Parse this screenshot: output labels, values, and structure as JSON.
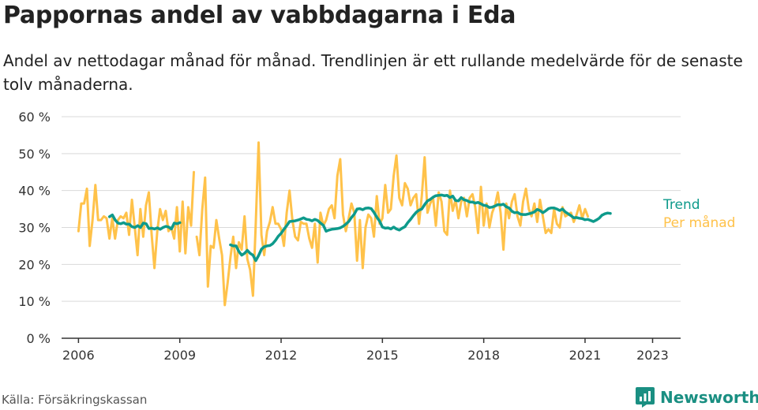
{
  "title": "Pappornas andel av vabbdagarna i Eda",
  "subtitle": "Andel av nettodagar månad för månad. Trendlinjen är ett rullande medelvärde för de senaste tolv månaderna.",
  "source": "Källa: Försäkringskassan",
  "brand": "Newsworthy",
  "colors": {
    "monthly": "#ffc24a",
    "trend": "#0e9a8b",
    "grid": "#d9d9d9",
    "axis": "#333333",
    "brand": "#1a8f82"
  },
  "chart_data": {
    "type": "line",
    "title": "Pappornas andel av vabbdagarna i Eda",
    "xlabel": "",
    "ylabel": "",
    "ylim": [
      0,
      60
    ],
    "xlim": [
      2005.5,
      2023.83
    ],
    "y_ticks": [
      0,
      10,
      20,
      30,
      40,
      50,
      60
    ],
    "y_tick_labels": [
      "0 %",
      "10 %",
      "20 %",
      "30 %",
      "40 %",
      "50 %",
      "60 %"
    ],
    "x_ticks": [
      2006,
      2009,
      2012,
      2015,
      2018,
      2021,
      2023
    ],
    "x_tick_labels": [
      "2006",
      "2009",
      "2012",
      "2015",
      "2018",
      "2021",
      "2023"
    ],
    "grid": true,
    "legend": "right, as line-end labels",
    "series": [
      {
        "name": "Per månad",
        "color": "#ffc24a",
        "segments": [
          {
            "start_year": 2006.0,
            "values": [
              29,
              36.5,
              36.5,
              40.5,
              25,
              32,
              41.5,
              32,
              32,
              33,
              32.5,
              27,
              32.5,
              27,
              32,
              33,
              32.5,
              34,
              28,
              37.5,
              30,
              22.5,
              35,
              27.5,
              36,
              39.5,
              28,
              19,
              29,
              35,
              32,
              34.5,
              29,
              30,
              27,
              35.5,
              23.5,
              37,
              23,
              35.5,
              30.5,
              45
            ]
          },
          {
            "start_year": 2009.5,
            "values": [
              27.5,
              22.5,
              35,
              43.5,
              14,
              25,
              24.5,
              32,
              27,
              22.5,
              9,
              15,
              22,
              27.5,
              19,
              26,
              24,
              33,
              21.5,
              18.5,
              11.5,
              31,
              53,
              28,
              22.5,
              29,
              31.5,
              35.5,
              31,
              31,
              29.5,
              25,
              34,
              40,
              32,
              27.5,
              26.5,
              31.5,
              31,
              31,
              27,
              24.5,
              31,
              20.5,
              34,
              30.5,
              32,
              35,
              36,
              32.5,
              44,
              48.5,
              33.5,
              29,
              32.5,
              36.5,
              34,
              21,
              32,
              19,
              30,
              33.5,
              32.5,
              27.5,
              38.5,
              31,
              32.5,
              41.5,
              34,
              35,
              44,
              49.5,
              38,
              36,
              42,
              40.5,
              36,
              38,
              39,
              31,
              38.5,
              49,
              34,
              36.5,
              38,
              30.5,
              39.5,
              37,
              29,
              28,
              40,
              34.5,
              37.5,
              32.5,
              37,
              38,
              33,
              38,
              39,
              35.5,
              28.5,
              41,
              30.5,
              36.5,
              30,
              34,
              36,
              39.5,
              34,
              24,
              36.5,
              32.5,
              37,
              39,
              33,
              30.5,
              37,
              40.5,
              35,
              33,
              36.5,
              31.5,
              37.5,
              33,
              28.5,
              29.5,
              28.5,
              35,
              31,
              30,
              35.5,
              33,
              33.5,
              34,
              31.5,
              33.5,
              36,
              32.5,
              35,
              33
            ]
          }
        ]
      },
      {
        "name": "Trend",
        "color": "#0e9a8b",
        "segments": [
          {
            "start_year": 2006.92,
            "values": [
              32.9,
              33.4,
              32,
              31.2,
              31,
              31.3,
              30.9,
              30.9,
              30.2,
              30,
              30.5,
              30,
              31.2,
              31,
              29.7,
              29.8,
              29.6,
              29.9,
              29.5,
              30,
              30.3,
              30.1,
              29.6,
              31.2,
              31,
              31.3
            ]
          },
          {
            "start_year": 2010.5,
            "values": [
              25.3,
              25,
              25,
              23.5,
              22.5,
              23,
              23.8,
              23,
              22.5,
              21,
              22.4,
              24.1,
              24.8,
              25,
              25.1,
              25.6,
              26.5,
              27.6,
              28.4,
              29.5,
              30.5,
              31.6,
              31.7,
              31.8,
              32,
              32.3,
              32.6,
              32.2,
              32.1,
              31.8,
              32.2,
              31.9,
              31.2,
              30.6,
              29,
              29.3,
              29.5,
              29.6,
              29.7,
              29.9,
              30.3,
              30.9,
              31.6,
              32.7,
              33.6,
              35,
              35.1,
              34.8,
              35.2,
              35.3,
              35.1,
              34.1,
              32.8,
              31.7,
              30.1,
              29.8,
              29.9,
              29.6,
              30.1,
              29.6,
              29.3,
              29.8,
              30.2,
              31.3,
              32.2,
              33.2,
              34.1,
              34.7,
              35,
              36.2,
              37.2,
              37.6,
              38.2,
              38.6,
              38.7,
              38.8,
              38.6,
              38.7,
              38.1,
              38.5,
              37.3,
              37.2,
              38.1,
              37.5,
              37.3,
              36.9,
              36.9,
              36.6,
              36.8,
              36.4,
              36,
              35.9,
              35.4,
              35.5,
              35.8,
              36.2,
              36.1,
              36.3,
              35.6,
              35.3,
              34.4,
              34,
              34.1,
              33.6,
              33.5,
              33.5,
              33.7,
              33.9,
              34.2,
              34.9,
              34.6,
              34,
              34.5,
              35.1,
              35.3,
              35.3,
              35,
              34.6,
              35,
              34.2,
              33.7,
              33.2,
              32.6,
              32.7,
              32.5,
              32.4,
              32.1,
              32.2,
              31.9,
              31.6,
              32,
              32.5,
              33.3,
              33.7,
              33.9,
              33.8
            ]
          }
        ]
      }
    ]
  }
}
